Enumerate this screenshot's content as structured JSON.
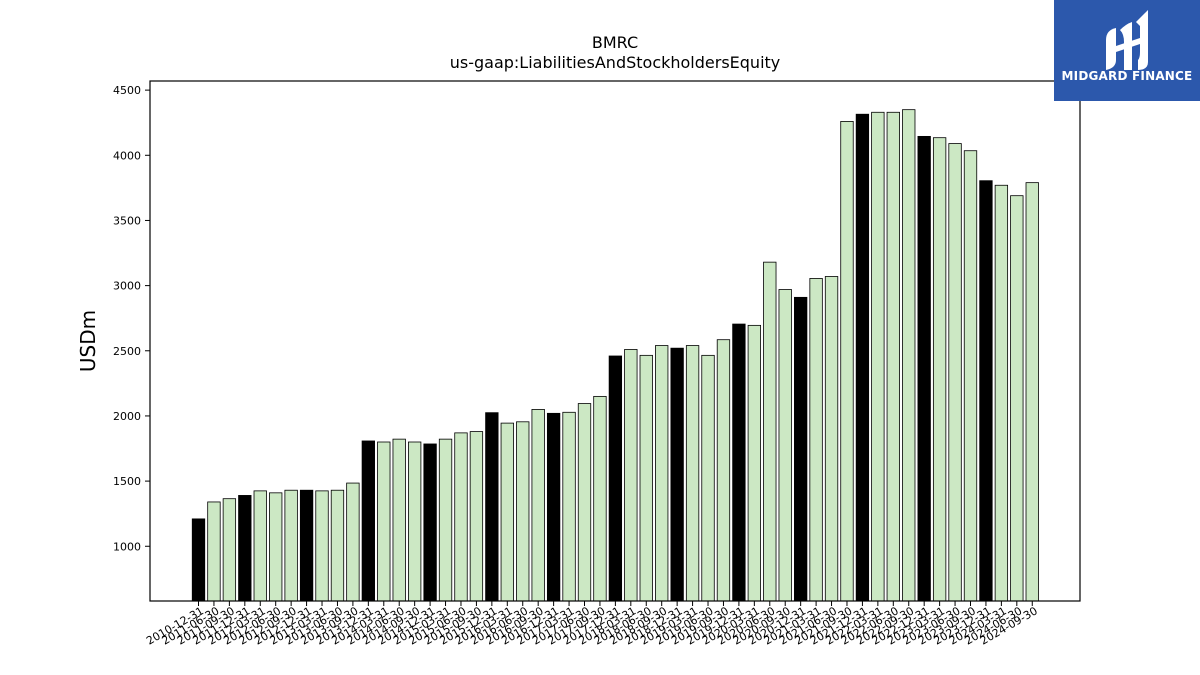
{
  "chart_data": {
    "type": "bar",
    "title": "BMRC",
    "subtitle": "us-gaap:LiabilitiesAndStockholdersEquity",
    "xlabel": "",
    "ylabel": "USDm",
    "ylim": [
      580,
      4570
    ],
    "yticks": [
      1000,
      1500,
      2000,
      2500,
      3000,
      3500,
      4000,
      4500
    ],
    "grid": false,
    "colors": {
      "annual": "#000000",
      "quarterly": "#cce8c4",
      "edge": "#000000"
    },
    "categories": [
      "2010-12-31",
      "2011-06-30",
      "2011-09-30",
      "2011-12-31",
      "2012-03-31",
      "2012-06-30",
      "2012-09-30",
      "2012-12-31",
      "2013-03-31",
      "2013-06-30",
      "2013-09-30",
      "2013-12-31",
      "2014-03-31",
      "2014-06-30",
      "2014-09-30",
      "2014-12-31",
      "2015-03-31",
      "2015-06-30",
      "2015-09-30",
      "2015-12-31",
      "2016-03-31",
      "2016-06-30",
      "2016-09-30",
      "2016-12-31",
      "2017-03-31",
      "2017-06-30",
      "2017-09-30",
      "2017-12-31",
      "2018-03-31",
      "2018-06-30",
      "2018-09-30",
      "2018-12-31",
      "2019-03-31",
      "2019-06-30",
      "2019-09-30",
      "2019-12-31",
      "2020-03-31",
      "2020-06-30",
      "2020-09-30",
      "2020-12-31",
      "2021-03-31",
      "2021-06-30",
      "2021-09-30",
      "2021-12-31",
      "2022-03-31",
      "2022-06-30",
      "2022-09-30",
      "2022-12-31",
      "2023-03-31",
      "2023-06-30",
      "2023-09-30",
      "2023-12-31",
      "2024-03-31",
      "2024-06-30",
      "2024-09-30"
    ],
    "values": [
      1210,
      1340,
      1365,
      1390,
      1425,
      1410,
      1430,
      1430,
      1425,
      1430,
      1485,
      1808,
      1800,
      1822,
      1800,
      1785,
      1822,
      1870,
      1880,
      2025,
      1945,
      1955,
      2050,
      2020,
      2028,
      2095,
      2150,
      2460,
      2510,
      2465,
      2540,
      2520,
      2540,
      2465,
      2585,
      2705,
      2695,
      3180,
      2970,
      2910,
      3055,
      3070,
      4260,
      4315,
      4330,
      4330,
      4350,
      4145,
      4135,
      4090,
      4035,
      3805,
      3770,
      3690,
      3790
    ],
    "annual_flags": [
      1,
      0,
      0,
      1,
      0,
      0,
      0,
      1,
      0,
      0,
      0,
      1,
      0,
      0,
      0,
      1,
      0,
      0,
      0,
      1,
      0,
      0,
      0,
      1,
      0,
      0,
      0,
      1,
      0,
      0,
      0,
      1,
      0,
      0,
      0,
      1,
      0,
      0,
      0,
      1,
      0,
      0,
      0,
      1,
      0,
      0,
      0,
      1,
      0,
      0,
      0,
      1,
      0,
      0,
      0
    ]
  },
  "logo": {
    "text": "MIDGARD FINANCE",
    "bg": "#2c58ac"
  }
}
